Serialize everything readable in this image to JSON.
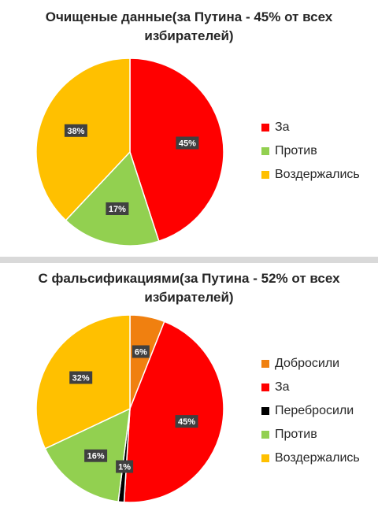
{
  "colors": {
    "za": "#ff0000",
    "protiv": "#92d050",
    "vozderzhalis": "#ffc000",
    "dobrosili": "#f08010",
    "perebrosili": "#000000"
  },
  "chart_data": [
    {
      "type": "pie",
      "title": "Очищеные данные(за Путина - 45% от всех избирателей)",
      "legend": "right",
      "slices": [
        {
          "label": "За",
          "value": 45,
          "display": "45%",
          "color": "#ff0000"
        },
        {
          "label": "Против",
          "value": 17,
          "display": "17%",
          "color": "#92d050"
        },
        {
          "label": "Воздержались",
          "value": 38,
          "display": "38%",
          "color": "#ffc000"
        }
      ],
      "legend_order": [
        "За",
        "Против",
        "Воздержались"
      ]
    },
    {
      "type": "pie",
      "title": "С фальсификациями(за Путина - 52% от всех избирателей)",
      "legend": "right",
      "slices": [
        {
          "label": "Добросили",
          "value": 6,
          "display": "6%",
          "color": "#f08010"
        },
        {
          "label": "За",
          "value": 45,
          "display": "45%",
          "color": "#ff0000"
        },
        {
          "label": "Перебросили",
          "value": 1,
          "display": "1%",
          "color": "#000000"
        },
        {
          "label": "Против",
          "value": 16,
          "display": "16%",
          "color": "#92d050"
        },
        {
          "label": "Воздержались",
          "value": 32,
          "display": "32%",
          "color": "#ffc000"
        }
      ],
      "legend_order": [
        "Добросили",
        "За",
        "Перебросили",
        "Против",
        "Воздержались"
      ]
    }
  ]
}
